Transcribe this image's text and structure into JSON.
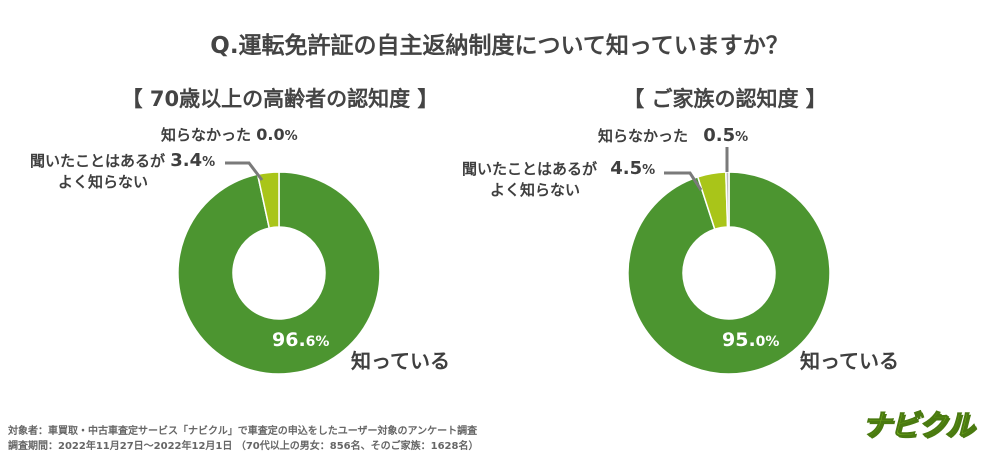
{
  "title": "Q.運転免許証の自主返納制度について知っていますか？",
  "chart_data": [
    {
      "type": "pie",
      "title": "【 70歳以上の高齢者の認知度 】",
      "slices": [
        {
          "label": "知っている",
          "value": 96.6,
          "color": "#4c9530"
        },
        {
          "label": "聞いたことはあるがよく知らない",
          "value": 3.4,
          "color": "#a9c519"
        },
        {
          "label": "知らなかった",
          "value": 0.0,
          "color": "#bdbdbd"
        }
      ]
    },
    {
      "type": "pie",
      "title": "【 ご家族の認知度 】",
      "slices": [
        {
          "label": "知っている",
          "value": 95.0,
          "color": "#4c9530"
        },
        {
          "label": "聞いたことはあるがよく知らない",
          "value": 4.5,
          "color": "#a9c519"
        },
        {
          "label": "知らなかった",
          "value": 0.5,
          "color": "#bdbdbd"
        }
      ]
    }
  ],
  "labels": {
    "left": {
      "known": "知っている",
      "known_pct_main": "96.",
      "known_pct_small": "6%",
      "heard_line1": "聞いたことはあるが",
      "heard_line2": "よく知らない",
      "heard_pct_main": "3.4",
      "heard_pct_small": "%",
      "unknown": "知らなかった",
      "unknown_pct_main": "0.0",
      "unknown_pct_small": "%"
    },
    "right": {
      "known": "知っている",
      "known_pct_main": "95.",
      "known_pct_small": "0%",
      "heard_line1": "聞いたことはあるが",
      "heard_line2": "よく知らない",
      "heard_pct_main": "4.5",
      "heard_pct_small": "%",
      "unknown": "知らなかった",
      "unknown_pct_main": "0.5",
      "unknown_pct_small": "%"
    }
  },
  "footer": {
    "line1": "対象者：車買取・中古車査定サービス「ナビクル」で車査定の申込をしたユーザー対象のアンケート調査",
    "line2": "調査期間：2022年11月27日～2022年12月1日 （70代以上の男女：856名、そのご家族：1628名）"
  },
  "logo": "ナビクル"
}
